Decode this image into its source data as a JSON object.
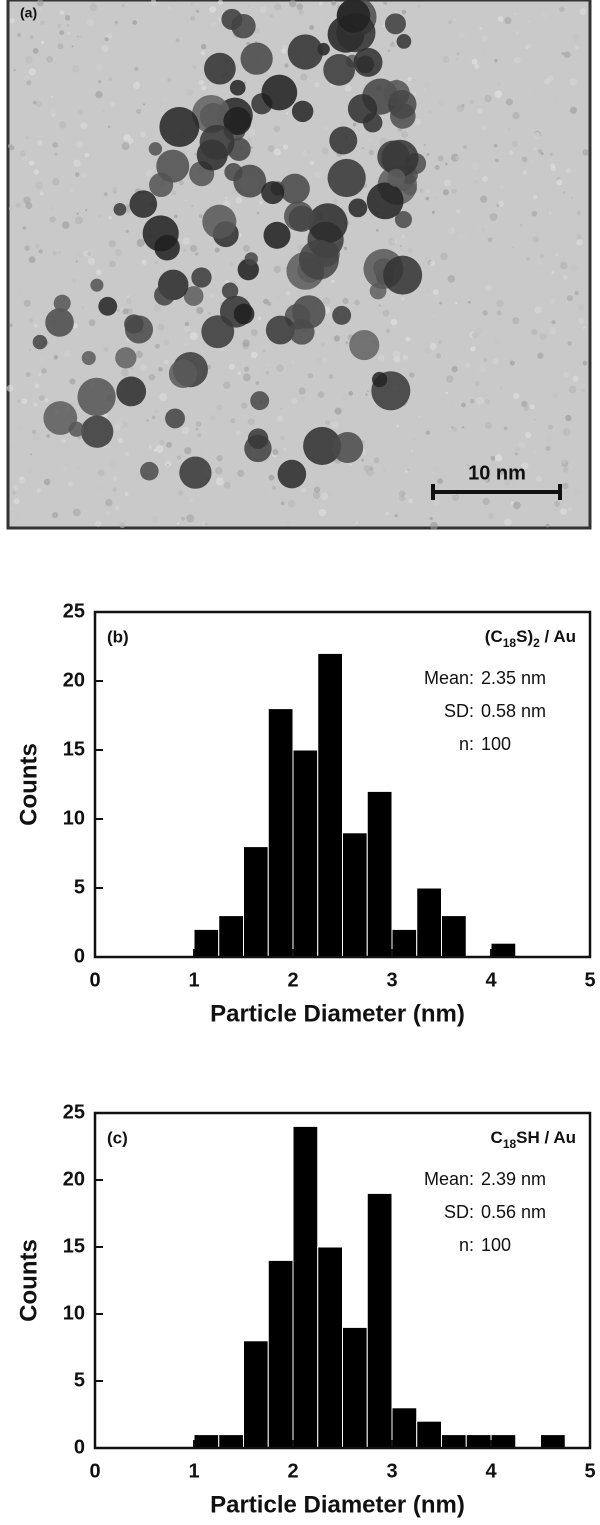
{
  "image": {
    "label": "(a)",
    "scale_bar": "10 nm"
  },
  "chart_data": [
    {
      "type": "histogram",
      "panel_label": "(b)",
      "legend_label": [
        "(C",
        "18",
        "S)",
        "2",
        " / Au"
      ],
      "stats": [
        {
          "label": "Mean:",
          "text": "2.35 nm"
        },
        {
          "label": "SD:",
          "text": "0.58 nm"
        },
        {
          "label": "n:",
          "text": "100"
        }
      ],
      "xlabel": "Particle Diameter (nm)",
      "ylabel": "Counts",
      "bins": [
        1,
        1.25,
        1.5,
        1.75,
        2,
        2.25,
        2.5,
        2.75,
        3,
        3.25,
        3.5,
        3.75,
        4,
        4.25
      ],
      "values": [
        2,
        3,
        8,
        18,
        15,
        22,
        9,
        12,
        2,
        5,
        3,
        0,
        1
      ],
      "color": "#000000",
      "xlim": [
        0,
        5
      ],
      "xticks": [
        0,
        1,
        2,
        3,
        4,
        5
      ],
      "ylim": [
        0,
        25
      ],
      "yticks": [
        0,
        5,
        10,
        15,
        20,
        25
      ]
    },
    {
      "type": "histogram",
      "panel_label": "(c)",
      "legend_label": [
        "C",
        "18",
        "SH / Au"
      ],
      "stats": [
        {
          "label": "Mean:",
          "text": "2.39 nm"
        },
        {
          "label": "SD:",
          "text": "0.56 nm"
        },
        {
          "label": "n:",
          "text": "100"
        }
      ],
      "xlabel": "Particle Diameter (nm)",
      "ylabel": "Counts",
      "bins": [
        1,
        1.25,
        1.5,
        1.75,
        2,
        2.25,
        2.5,
        2.75,
        3,
        3.25,
        3.5,
        3.75,
        4,
        4.25,
        4.5,
        4.75
      ],
      "values": [
        1,
        1,
        8,
        14,
        24,
        15,
        9,
        19,
        3,
        2,
        1,
        1,
        1,
        0,
        1
      ],
      "color": "#000000",
      "xlim": [
        0,
        5
      ],
      "xticks": [
        0,
        1,
        2,
        3,
        4,
        5
      ],
      "ylim": [
        0,
        25
      ],
      "yticks": [
        0,
        5,
        10,
        15,
        20,
        25
      ]
    }
  ]
}
